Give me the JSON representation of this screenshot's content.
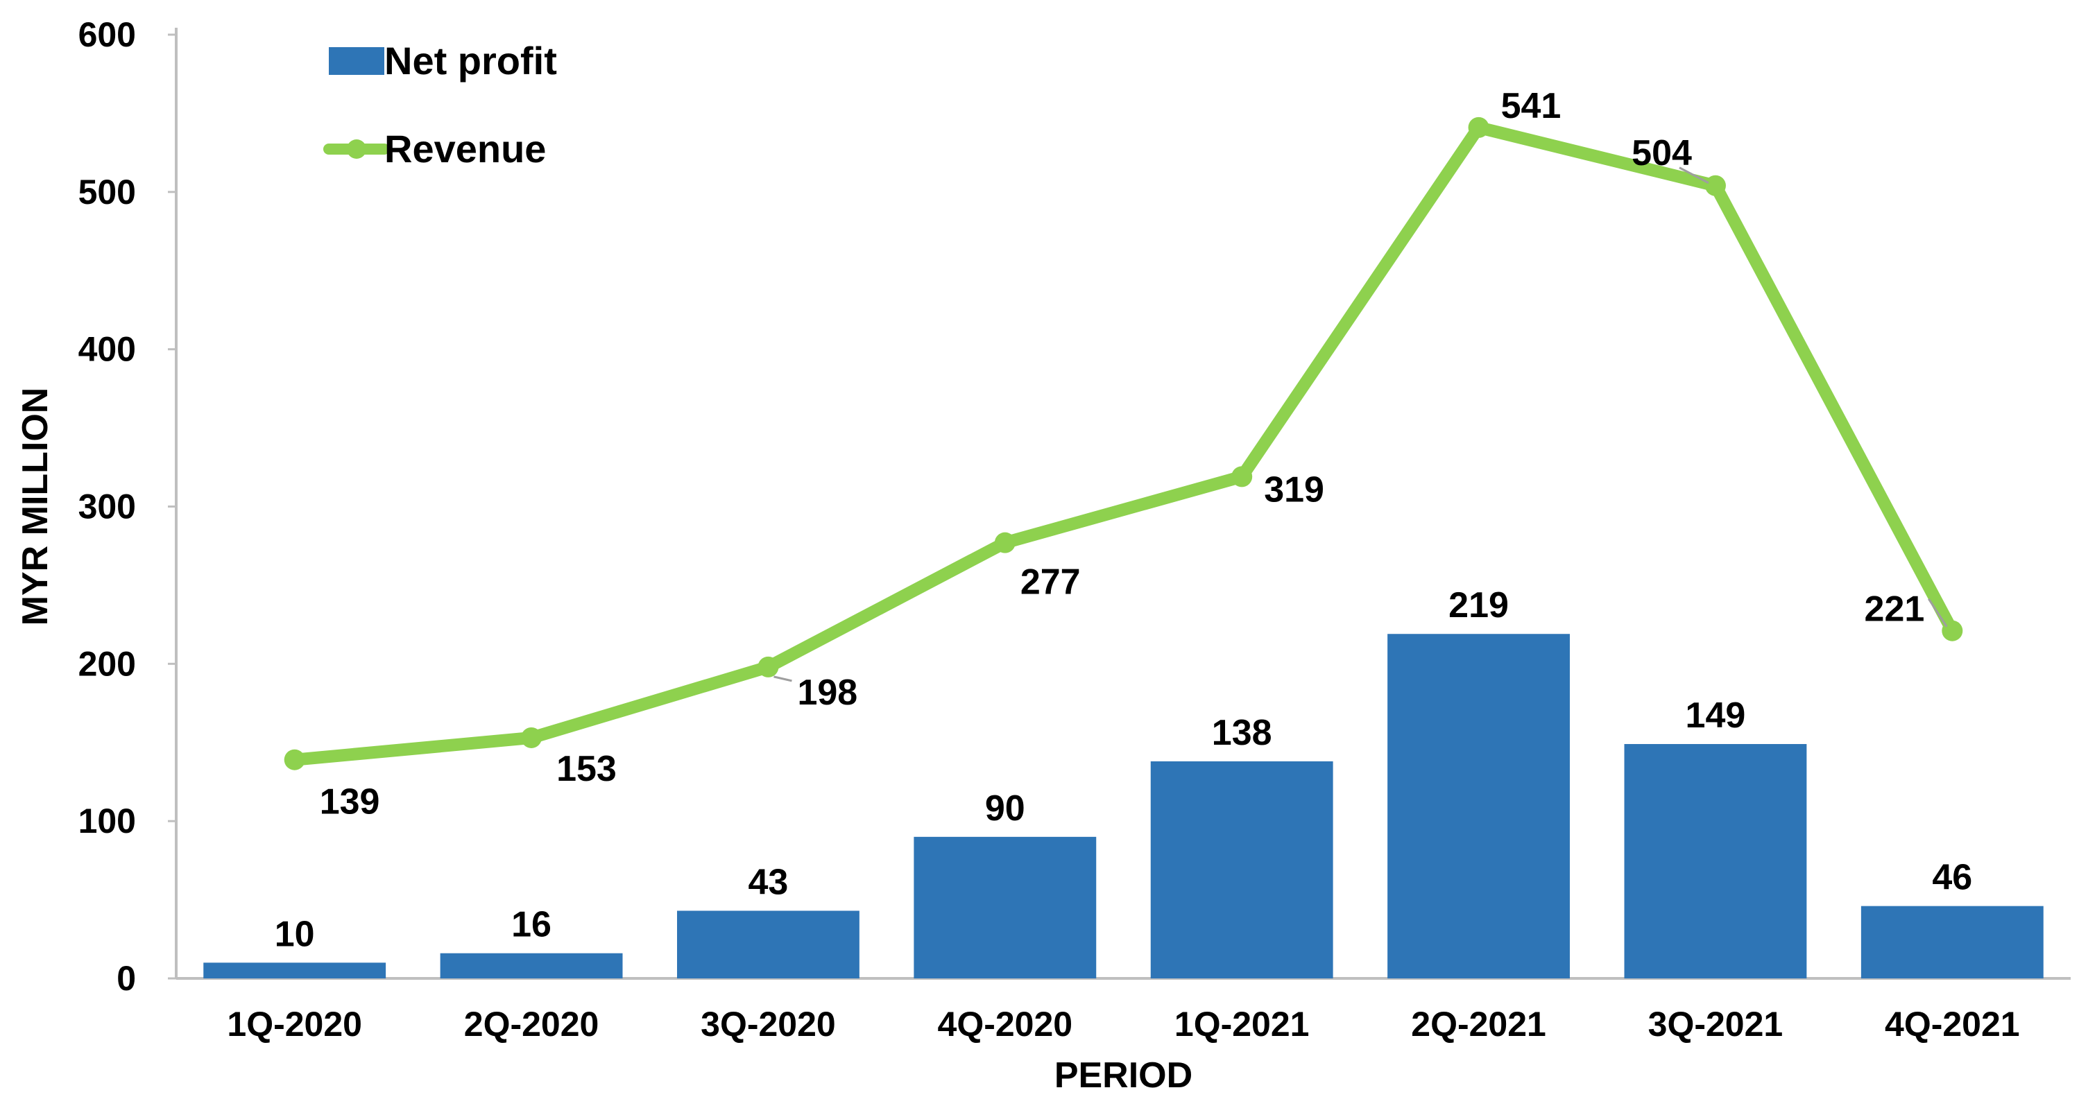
{
  "chart_data": {
    "type": "bar",
    "title": "",
    "xlabel": "PERIOD",
    "ylabel": "MYR MILLION",
    "ylim": [
      0,
      600
    ],
    "yticks": [
      0,
      100,
      200,
      300,
      400,
      500,
      600
    ],
    "grid": false,
    "legend_position": "top-left",
    "categories": [
      "1Q-2020",
      "2Q-2020",
      "3Q-2020",
      "4Q-2020",
      "1Q-2021",
      "2Q-2021",
      "3Q-2021",
      "4Q-2021"
    ],
    "series": [
      {
        "name": "Net profit",
        "type": "bar",
        "color": "#2E75B6",
        "values": [
          10,
          16,
          43,
          90,
          138,
          219,
          149,
          46
        ]
      },
      {
        "name": "Revenue",
        "type": "line",
        "color": "#8ED14E",
        "values": [
          139,
          153,
          198,
          277,
          319,
          541,
          504,
          221
        ]
      }
    ]
  }
}
